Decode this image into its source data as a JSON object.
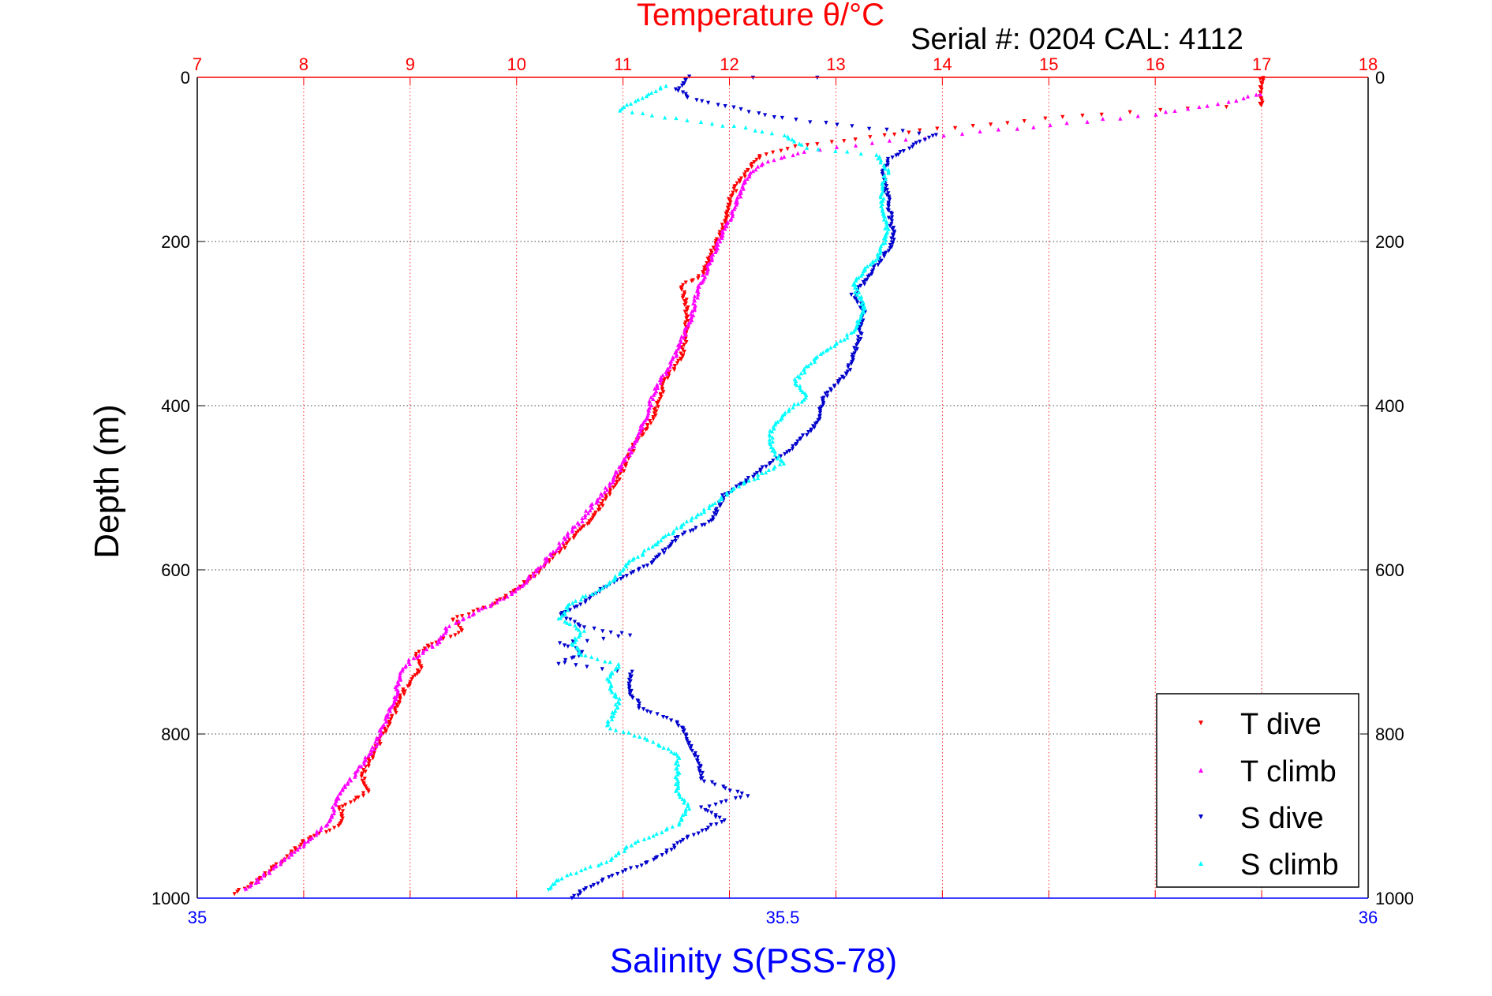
{
  "header": {
    "title": "Temperature θ/°C",
    "serial": "Serial #: 0204  CAL: 4112"
  },
  "chart_data": {
    "type": "scatter",
    "ylabel": "Depth (m)",
    "xlabel_bottom": "Salinity S(PSS-78)",
    "xlabel_top": "Temperature θ/°C",
    "y_axis": {
      "range": [
        0,
        1000
      ],
      "reversed": true,
      "ticks": [
        0,
        200,
        400,
        600,
        800,
        1000
      ],
      "tick_labels": [
        "0",
        "200",
        "400",
        "600",
        "800",
        "1000"
      ]
    },
    "top_axis": {
      "range": [
        7,
        18
      ],
      "ticks": [
        7,
        8,
        9,
        10,
        11,
        12,
        13,
        14,
        15,
        16,
        17,
        18
      ],
      "tick_labels": [
        "7",
        "8",
        "9",
        "10",
        "11",
        "12",
        "13",
        "14",
        "15",
        "16",
        "17",
        "18"
      ],
      "grid": "vertical dotted red"
    },
    "bottom_axis": {
      "range": [
        35,
        36
      ],
      "ticks": [
        35,
        35.5,
        36
      ],
      "tick_labels": [
        "35",
        "35.5",
        "36"
      ]
    },
    "grid": "horizontal dotted black",
    "legend_position": "bottom-right",
    "colors": {
      "top_axis": "#ff0000",
      "bottom_axis": "#0000ff",
      "t_dive": "#ff0000",
      "t_climb": "#ff00ff",
      "s_dive": "#0000cc",
      "s_climb": "#00ffff"
    },
    "series": [
      {
        "name": "T dive",
        "axis": "temperature",
        "marker": "triangle-down",
        "color": "#ff0000",
        "points": [
          [
            17.0,
            0
          ],
          [
            17.0,
            20
          ],
          [
            17.0,
            35
          ],
          [
            16.3,
            38
          ],
          [
            15.5,
            45
          ],
          [
            14.6,
            55
          ],
          [
            13.8,
            65
          ],
          [
            13.2,
            75
          ],
          [
            12.6,
            85
          ],
          [
            12.3,
            95
          ],
          [
            12.2,
            110
          ],
          [
            12.1,
            125
          ],
          [
            12.0,
            150
          ],
          [
            11.95,
            180
          ],
          [
            11.85,
            210
          ],
          [
            11.75,
            240
          ],
          [
            11.55,
            255
          ],
          [
            11.6,
            280
          ],
          [
            11.6,
            310
          ],
          [
            11.55,
            340
          ],
          [
            11.4,
            370
          ],
          [
            11.3,
            410
          ],
          [
            11.1,
            450
          ],
          [
            10.95,
            490
          ],
          [
            10.75,
            530
          ],
          [
            10.55,
            560
          ],
          [
            10.3,
            590
          ],
          [
            10.05,
            620
          ],
          [
            9.75,
            645
          ],
          [
            9.4,
            660
          ],
          [
            9.5,
            675
          ],
          [
            9.2,
            690
          ],
          [
            9.05,
            705
          ],
          [
            9.1,
            720
          ],
          [
            8.95,
            745
          ],
          [
            8.85,
            775
          ],
          [
            8.75,
            800
          ],
          [
            8.65,
            825
          ],
          [
            8.55,
            850
          ],
          [
            8.6,
            870
          ],
          [
            8.35,
            890
          ],
          [
            8.35,
            910
          ],
          [
            8.0,
            930
          ],
          [
            7.85,
            950
          ],
          [
            7.6,
            975
          ],
          [
            7.35,
            995
          ]
        ]
      },
      {
        "name": "T climb",
        "axis": "temperature",
        "marker": "triangle-up",
        "color": "#ff00ff",
        "points": [
          [
            17.0,
            20
          ],
          [
            16.7,
            30
          ],
          [
            16.0,
            45
          ],
          [
            14.7,
            62
          ],
          [
            13.5,
            78
          ],
          [
            12.7,
            90
          ],
          [
            12.3,
            105
          ],
          [
            12.15,
            125
          ],
          [
            12.05,
            160
          ],
          [
            11.9,
            200
          ],
          [
            11.8,
            230
          ],
          [
            11.7,
            260
          ],
          [
            11.65,
            290
          ],
          [
            11.55,
            320
          ],
          [
            11.45,
            350
          ],
          [
            11.3,
            380
          ],
          [
            11.2,
            420
          ],
          [
            11.05,
            460
          ],
          [
            10.85,
            500
          ],
          [
            10.6,
            540
          ],
          [
            10.4,
            570
          ],
          [
            10.2,
            600
          ],
          [
            9.95,
            630
          ],
          [
            9.65,
            650
          ],
          [
            9.35,
            670
          ],
          [
            9.25,
            690
          ],
          [
            9.0,
            710
          ],
          [
            8.9,
            730
          ],
          [
            8.85,
            760
          ],
          [
            8.75,
            790
          ],
          [
            8.65,
            820
          ],
          [
            8.5,
            845
          ],
          [
            8.3,
            880
          ],
          [
            8.25,
            905
          ],
          [
            8.05,
            930
          ],
          [
            7.75,
            960
          ],
          [
            7.45,
            990
          ]
        ]
      },
      {
        "name": "S dive",
        "axis": "salinity",
        "marker": "triangle-down",
        "color": "#0000cc",
        "points": [
          [
            35.53,
            0
          ],
          [
            35.42,
            0
          ],
          [
            35.41,
            15
          ],
          [
            35.42,
            25
          ],
          [
            35.45,
            35
          ],
          [
            35.5,
            50
          ],
          [
            35.56,
            60
          ],
          [
            35.63,
            70
          ],
          [
            35.61,
            85
          ],
          [
            35.59,
            100
          ],
          [
            35.585,
            120
          ],
          [
            35.59,
            150
          ],
          [
            35.595,
            200
          ],
          [
            35.58,
            230
          ],
          [
            35.57,
            250
          ],
          [
            35.56,
            265
          ],
          [
            35.57,
            285
          ],
          [
            35.565,
            320
          ],
          [
            35.555,
            360
          ],
          [
            35.535,
            390
          ],
          [
            35.53,
            420
          ],
          [
            35.51,
            450
          ],
          [
            35.48,
            480
          ],
          [
            35.45,
            510
          ],
          [
            35.44,
            540
          ],
          [
            35.41,
            560
          ],
          [
            35.39,
            590
          ],
          [
            35.35,
            620
          ],
          [
            35.33,
            640
          ],
          [
            35.31,
            655
          ],
          [
            35.33,
            670
          ],
          [
            35.37,
            680
          ],
          [
            35.31,
            690
          ],
          [
            35.33,
            700
          ],
          [
            35.31,
            715
          ],
          [
            35.37,
            725
          ],
          [
            35.37,
            750
          ],
          [
            35.38,
            770
          ],
          [
            35.41,
            785
          ],
          [
            35.42,
            810
          ],
          [
            35.43,
            840
          ],
          [
            35.43,
            855
          ],
          [
            35.47,
            875
          ],
          [
            35.43,
            890
          ],
          [
            35.45,
            905
          ],
          [
            35.42,
            925
          ],
          [
            35.4,
            945
          ],
          [
            35.38,
            960
          ],
          [
            35.35,
            975
          ],
          [
            35.33,
            990
          ],
          [
            35.32,
            1000
          ]
        ]
      },
      {
        "name": "S climb",
        "axis": "salinity",
        "marker": "triangle-up",
        "color": "#00ffff",
        "points": [
          [
            35.4,
            10
          ],
          [
            35.36,
            40
          ],
          [
            35.41,
            50
          ],
          [
            35.46,
            60
          ],
          [
            35.5,
            70
          ],
          [
            35.52,
            85
          ],
          [
            35.58,
            95
          ],
          [
            35.59,
            115
          ],
          [
            35.585,
            130
          ],
          [
            35.585,
            160
          ],
          [
            35.59,
            190
          ],
          [
            35.58,
            220
          ],
          [
            35.56,
            250
          ],
          [
            35.57,
            280
          ],
          [
            35.56,
            310
          ],
          [
            35.53,
            340
          ],
          [
            35.51,
            370
          ],
          [
            35.52,
            390
          ],
          [
            35.5,
            410
          ],
          [
            35.49,
            430
          ],
          [
            35.49,
            450
          ],
          [
            35.5,
            470
          ],
          [
            35.46,
            500
          ],
          [
            35.44,
            520
          ],
          [
            35.41,
            550
          ],
          [
            35.39,
            570
          ],
          [
            35.37,
            590
          ],
          [
            35.35,
            620
          ],
          [
            35.32,
            640
          ],
          [
            35.31,
            660
          ],
          [
            35.33,
            675
          ],
          [
            35.32,
            690
          ],
          [
            35.33,
            705
          ],
          [
            35.36,
            715
          ],
          [
            35.35,
            735
          ],
          [
            35.36,
            760
          ],
          [
            35.35,
            790
          ],
          [
            35.39,
            810
          ],
          [
            35.41,
            825
          ],
          [
            35.41,
            845
          ],
          [
            35.41,
            870
          ],
          [
            35.42,
            890
          ],
          [
            35.41,
            910
          ],
          [
            35.37,
            935
          ],
          [
            35.35,
            955
          ],
          [
            35.31,
            975
          ],
          [
            35.3,
            990
          ]
        ]
      }
    ]
  }
}
